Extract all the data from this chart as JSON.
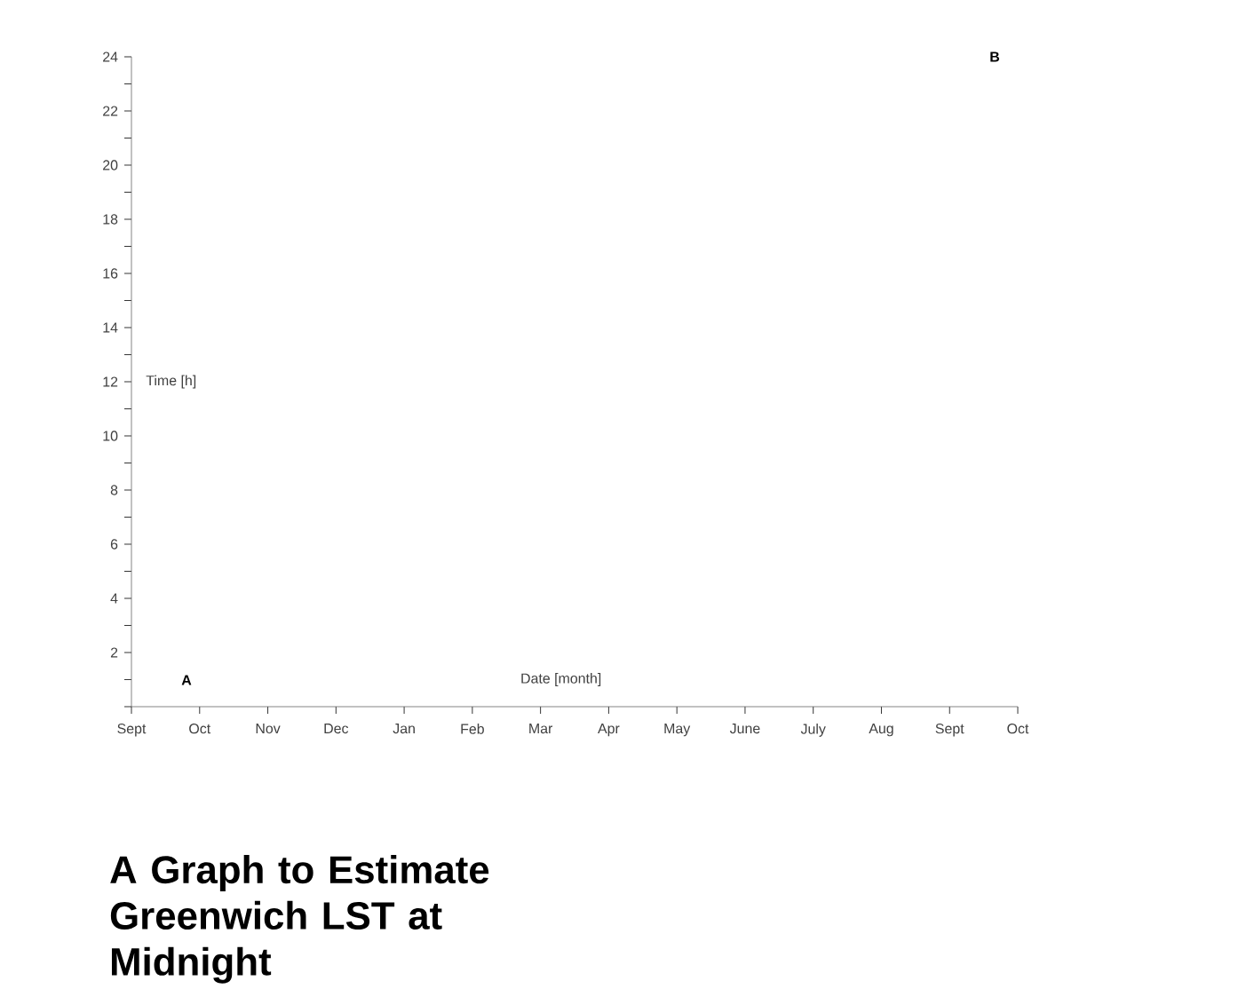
{
  "chart_data": {
    "type": "scatter",
    "title": "A Graph to Estimate Greenwich LST at Midnight",
    "xlabel": "Date [month]",
    "ylabel": "Time [h]",
    "categories": [
      "Sept",
      "Oct",
      "Nov",
      "Dec",
      "Jan",
      "Feb",
      "Mar",
      "Apr",
      "May",
      "June",
      "July",
      "Aug",
      "Sept",
      "Oct"
    ],
    "ylim": [
      0,
      24
    ],
    "yticks": [
      {
        "value": 0,
        "label": null
      },
      {
        "value": 1,
        "label": null
      },
      2,
      {
        "value": 3,
        "label": null
      },
      4,
      {
        "value": 5,
        "label": null
      },
      6,
      {
        "value": 7,
        "label": null
      },
      8,
      {
        "value": 9,
        "label": null
      },
      10,
      {
        "value": 11,
        "label": null
      },
      12,
      {
        "value": 13,
        "label": null
      },
      14,
      {
        "value": 15,
        "label": null
      },
      16,
      {
        "value": 17,
        "label": null
      },
      18,
      {
        "value": 19,
        "label": null
      },
      20,
      {
        "value": 21,
        "label": null
      },
      22,
      {
        "value": 23,
        "label": null
      },
      24
    ],
    "annotations": [
      "A",
      "B"
    ],
    "grid": false
  }
}
